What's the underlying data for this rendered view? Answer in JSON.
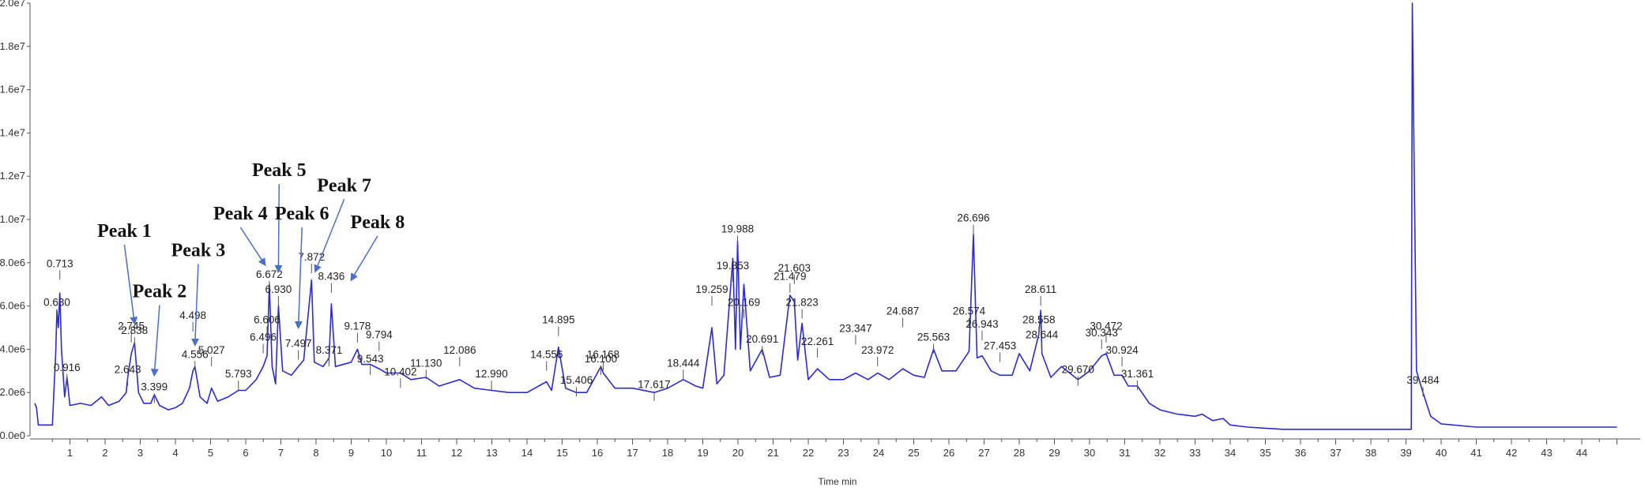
{
  "chart_data": {
    "type": "line",
    "title": "",
    "xlabel": "Time min",
    "ylabel": "",
    "xlim": [
      0,
      45
    ],
    "ylim": [
      0,
      20000000
    ],
    "grid": false,
    "colors": {
      "trace": "#2b2bd0",
      "annotation_arrow": "#4a6fc4",
      "axis": "#555555"
    },
    "y_ticks": [
      {
        "value": 0,
        "label": "0.0e0"
      },
      {
        "value": 2000000,
        "label": "2.0e6"
      },
      {
        "value": 4000000,
        "label": "4.0e6"
      },
      {
        "value": 6000000,
        "label": "6.0e6"
      },
      {
        "value": 8000000,
        "label": "8.0e6"
      },
      {
        "value": 10000000,
        "label": "1.0e7"
      },
      {
        "value": 12000000,
        "label": "1.2e7"
      },
      {
        "value": 14000000,
        "label": "1.4e7"
      },
      {
        "value": 16000000,
        "label": "1.6e7"
      },
      {
        "value": 18000000,
        "label": "1.8e7"
      },
      {
        "value": 20000000,
        "label": "2.0e7"
      }
    ],
    "x_ticks": [
      "1",
      "2",
      "3",
      "4",
      "5",
      "6",
      "7",
      "8",
      "9",
      "10",
      "11",
      "12",
      "13",
      "14",
      "15",
      "16",
      "17",
      "18",
      "19",
      "20",
      "21",
      "22",
      "23",
      "24",
      "25",
      "26",
      "27",
      "28",
      "29",
      "30",
      "31",
      "32",
      "33",
      "34",
      "35",
      "36",
      "37",
      "38",
      "39",
      "40",
      "41",
      "42",
      "43",
      "44"
    ],
    "series": [
      {
        "points": [
          [
            0,
            1500000
          ],
          [
            0.05,
            1300000
          ],
          [
            0.1,
            500000
          ],
          [
            0.5,
            500000
          ],
          [
            0.6,
            4000000
          ],
          [
            0.63,
            5800000
          ],
          [
            0.67,
            5000000
          ],
          [
            0.713,
            6600000
          ],
          [
            0.76,
            4000000
          ],
          [
            0.85,
            1800000
          ],
          [
            0.916,
            2700000
          ],
          [
            1.0,
            1400000
          ],
          [
            1.3,
            1500000
          ],
          [
            1.6,
            1400000
          ],
          [
            1.9,
            1800000
          ],
          [
            2.1,
            1400000
          ],
          [
            2.4,
            1600000
          ],
          [
            2.6,
            2000000
          ],
          [
            2.643,
            2700000
          ],
          [
            2.745,
            3800000
          ],
          [
            2.838,
            4300000
          ],
          [
            2.95,
            2000000
          ],
          [
            3.1,
            1500000
          ],
          [
            3.3,
            1500000
          ],
          [
            3.399,
            1900000
          ],
          [
            3.55,
            1400000
          ],
          [
            3.8,
            1200000
          ],
          [
            4.0,
            1300000
          ],
          [
            4.2,
            1500000
          ],
          [
            4.4,
            2200000
          ],
          [
            4.498,
            3000000
          ],
          [
            4.556,
            3200000
          ],
          [
            4.7,
            1800000
          ],
          [
            4.9,
            1500000
          ],
          [
            5.027,
            2200000
          ],
          [
            5.2,
            1600000
          ],
          [
            5.5,
            1800000
          ],
          [
            5.793,
            2100000
          ],
          [
            6.0,
            2100000
          ],
          [
            6.3,
            2600000
          ],
          [
            6.496,
            3200000
          ],
          [
            6.606,
            3700000
          ],
          [
            6.672,
            7000000
          ],
          [
            6.75,
            3200000
          ],
          [
            6.85,
            2400000
          ],
          [
            6.93,
            6000000
          ],
          [
            7.05,
            3000000
          ],
          [
            7.3,
            2800000
          ],
          [
            7.497,
            3200000
          ],
          [
            7.65,
            3500000
          ],
          [
            7.872,
            7200000
          ],
          [
            7.95,
            3400000
          ],
          [
            8.2,
            3200000
          ],
          [
            8.371,
            3600000
          ],
          [
            8.436,
            6100000
          ],
          [
            8.55,
            3200000
          ],
          [
            9.0,
            3400000
          ],
          [
            9.178,
            4000000
          ],
          [
            9.3,
            3300000
          ],
          [
            9.543,
            3300000
          ],
          [
            9.794,
            3100000
          ],
          [
            10.0,
            2900000
          ],
          [
            10.402,
            2900000
          ],
          [
            10.7,
            2600000
          ],
          [
            11.13,
            2700000
          ],
          [
            11.5,
            2300000
          ],
          [
            12.086,
            2600000
          ],
          [
            12.5,
            2200000
          ],
          [
            12.99,
            2100000
          ],
          [
            13.5,
            2000000
          ],
          [
            14.0,
            2000000
          ],
          [
            14.556,
            2500000
          ],
          [
            14.7,
            2100000
          ],
          [
            14.895,
            4100000
          ],
          [
            15.1,
            2200000
          ],
          [
            15.406,
            2000000
          ],
          [
            15.7,
            2000000
          ],
          [
            16.1,
            3200000
          ],
          [
            16.168,
            2900000
          ],
          [
            16.5,
            2200000
          ],
          [
            17.0,
            2200000
          ],
          [
            17.617,
            2000000
          ],
          [
            18.0,
            2200000
          ],
          [
            18.444,
            2600000
          ],
          [
            18.8,
            2300000
          ],
          [
            19.0,
            2200000
          ],
          [
            19.259,
            5000000
          ],
          [
            19.4,
            2400000
          ],
          [
            19.6,
            2800000
          ],
          [
            19.853,
            8200000
          ],
          [
            19.93,
            4000000
          ],
          [
            19.988,
            9000000
          ],
          [
            20.07,
            4000000
          ],
          [
            20.169,
            7000000
          ],
          [
            20.35,
            3000000
          ],
          [
            20.691,
            4000000
          ],
          [
            20.9,
            2700000
          ],
          [
            21.2,
            2800000
          ],
          [
            21.479,
            6500000
          ],
          [
            21.603,
            6200000
          ],
          [
            21.7,
            3500000
          ],
          [
            21.823,
            5200000
          ],
          [
            22.0,
            2600000
          ],
          [
            22.261,
            3100000
          ],
          [
            22.6,
            2600000
          ],
          [
            23.0,
            2600000
          ],
          [
            23.347,
            2900000
          ],
          [
            23.7,
            2600000
          ],
          [
            23.972,
            2900000
          ],
          [
            24.3,
            2600000
          ],
          [
            24.687,
            3100000
          ],
          [
            25.0,
            2800000
          ],
          [
            25.3,
            2700000
          ],
          [
            25.563,
            4000000
          ],
          [
            25.8,
            3000000
          ],
          [
            26.2,
            3000000
          ],
          [
            26.574,
            3900000
          ],
          [
            26.696,
            9300000
          ],
          [
            26.8,
            3600000
          ],
          [
            26.943,
            3700000
          ],
          [
            27.2,
            3000000
          ],
          [
            27.453,
            2800000
          ],
          [
            27.8,
            2800000
          ],
          [
            28.0,
            3800000
          ],
          [
            28.3,
            3000000
          ],
          [
            28.558,
            4700000
          ],
          [
            28.611,
            5800000
          ],
          [
            28.644,
            3800000
          ],
          [
            28.9,
            2700000
          ],
          [
            29.2,
            3200000
          ],
          [
            29.67,
            2600000
          ],
          [
            30.0,
            3000000
          ],
          [
            30.343,
            3700000
          ],
          [
            30.472,
            3800000
          ],
          [
            30.7,
            2800000
          ],
          [
            30.924,
            2800000
          ],
          [
            31.1,
            2300000
          ],
          [
            31.361,
            2300000
          ],
          [
            31.7,
            1500000
          ],
          [
            32.0,
            1200000
          ],
          [
            32.5,
            1000000
          ],
          [
            33.0,
            900000
          ],
          [
            33.2,
            1000000
          ],
          [
            33.5,
            700000
          ],
          [
            33.8,
            800000
          ],
          [
            34.0,
            500000
          ],
          [
            34.5,
            400000
          ],
          [
            35.0,
            350000
          ],
          [
            35.5,
            300000
          ],
          [
            36.0,
            300000
          ],
          [
            37.0,
            300000
          ],
          [
            38.0,
            300000
          ],
          [
            39.0,
            300000
          ],
          [
            39.15,
            300000
          ],
          [
            39.18,
            20000000
          ],
          [
            39.3,
            3000000
          ],
          [
            39.484,
            2000000
          ],
          [
            39.7,
            900000
          ],
          [
            40.0,
            550000
          ],
          [
            41.0,
            400000
          ],
          [
            42.0,
            400000
          ],
          [
            43.0,
            400000
          ],
          [
            44.0,
            400000
          ],
          [
            45,
            400000
          ]
        ]
      }
    ],
    "peak_labels": [
      {
        "t": 0.63,
        "y": 6000000,
        "label": "0.630"
      },
      {
        "t": 0.713,
        "y": 7800000,
        "label": "0.713"
      },
      {
        "t": 0.916,
        "y": 3000000,
        "label": "0.916"
      },
      {
        "t": 2.643,
        "y": 2900000,
        "label": "2.643"
      },
      {
        "t": 2.745,
        "y": 4900000,
        "label": "2.745"
      },
      {
        "t": 2.838,
        "y": 4700000,
        "label": "2.838"
      },
      {
        "t": 3.399,
        "y": 2100000,
        "label": "3.399"
      },
      {
        "t": 4.498,
        "y": 5400000,
        "label": "4.498"
      },
      {
        "t": 4.556,
        "y": 3600000,
        "label": "4.556"
      },
      {
        "t": 5.027,
        "y": 3800000,
        "label": "5.027"
      },
      {
        "t": 5.793,
        "y": 2700000,
        "label": "5.793"
      },
      {
        "t": 6.496,
        "y": 4400000,
        "label": "6.496"
      },
      {
        "t": 6.606,
        "y": 5200000,
        "label": "6.606"
      },
      {
        "t": 6.672,
        "y": 7300000,
        "label": "6.672"
      },
      {
        "t": 6.93,
        "y": 6600000,
        "label": "6.930"
      },
      {
        "t": 7.497,
        "y": 4100000,
        "label": "7.497"
      },
      {
        "t": 7.872,
        "y": 8100000,
        "label": "7.872"
      },
      {
        "t": 8.371,
        "y": 3800000,
        "label": "8.371"
      },
      {
        "t": 8.436,
        "y": 7200000,
        "label": "8.436"
      },
      {
        "t": 9.178,
        "y": 4900000,
        "label": "9.178"
      },
      {
        "t": 9.543,
        "y": 3400000,
        "label": "9.543"
      },
      {
        "t": 9.794,
        "y": 4500000,
        "label": "9.794"
      },
      {
        "t": 10.402,
        "y": 2800000,
        "label": "10.402"
      },
      {
        "t": 11.13,
        "y": 3200000,
        "label": "11.130"
      },
      {
        "t": 12.086,
        "y": 3800000,
        "label": "12.086"
      },
      {
        "t": 12.99,
        "y": 2700000,
        "label": "12.990"
      },
      {
        "t": 14.556,
        "y": 3600000,
        "label": "14.556"
      },
      {
        "t": 14.895,
        "y": 5200000,
        "label": "14.895"
      },
      {
        "t": 15.406,
        "y": 2400000,
        "label": "15.406"
      },
      {
        "t": 16.1,
        "y": 3400000,
        "label": "16.100"
      },
      {
        "t": 16.168,
        "y": 3600000,
        "label": "16.168"
      },
      {
        "t": 17.617,
        "y": 2200000,
        "label": "17.617"
      },
      {
        "t": 18.444,
        "y": 3200000,
        "label": "18.444"
      },
      {
        "t": 19.259,
        "y": 6600000,
        "label": "19.259"
      },
      {
        "t": 19.853,
        "y": 7700000,
        "label": "19.853"
      },
      {
        "t": 19.988,
        "y": 9400000,
        "label": "19.988"
      },
      {
        "t": 20.169,
        "y": 6000000,
        "label": "20.169"
      },
      {
        "t": 20.691,
        "y": 4300000,
        "label": "20.691"
      },
      {
        "t": 21.479,
        "y": 7200000,
        "label": "21.479"
      },
      {
        "t": 21.603,
        "y": 7600000,
        "label": "21.603"
      },
      {
        "t": 21.823,
        "y": 6000000,
        "label": "21.823"
      },
      {
        "t": 22.261,
        "y": 4200000,
        "label": "22.261"
      },
      {
        "t": 23.347,
        "y": 4800000,
        "label": "23.347"
      },
      {
        "t": 23.972,
        "y": 3800000,
        "label": "23.972"
      },
      {
        "t": 24.687,
        "y": 5600000,
        "label": "24.687"
      },
      {
        "t": 25.563,
        "y": 4400000,
        "label": "25.563"
      },
      {
        "t": 26.574,
        "y": 5600000,
        "label": "26.574"
      },
      {
        "t": 26.696,
        "y": 9900000,
        "label": "26.696"
      },
      {
        "t": 26.943,
        "y": 5000000,
        "label": "26.943"
      },
      {
        "t": 27.453,
        "y": 4000000,
        "label": "27.453"
      },
      {
        "t": 28.558,
        "y": 5200000,
        "label": "28.558"
      },
      {
        "t": 28.611,
        "y": 6600000,
        "label": "28.611"
      },
      {
        "t": 28.644,
        "y": 4500000,
        "label": "28.644"
      },
      {
        "t": 29.67,
        "y": 2900000,
        "label": "29.670"
      },
      {
        "t": 30.343,
        "y": 4600000,
        "label": "30.343"
      },
      {
        "t": 30.472,
        "y": 4900000,
        "label": "30.472"
      },
      {
        "t": 30.924,
        "y": 3800000,
        "label": "30.924"
      },
      {
        "t": 31.361,
        "y": 2700000,
        "label": "31.361"
      },
      {
        "t": 39.484,
        "y": 2400000,
        "label": "39.484"
      }
    ],
    "annotations": [
      {
        "text": "Peak 1",
        "label_t": 2.55,
        "label_y": 9200000,
        "arrow_t": 2.838,
        "arrow_y": 5200000
      },
      {
        "text": "Peak 2",
        "label_t": 3.55,
        "label_y": 6400000,
        "arrow_t": 3.399,
        "arrow_y": 2800000
      },
      {
        "text": "Peak 3",
        "label_t": 4.65,
        "label_y": 8300000,
        "arrow_t": 4.556,
        "arrow_y": 4200000
      },
      {
        "text": "Peak 4",
        "label_t": 5.85,
        "label_y": 10000000,
        "arrow_t": 6.55,
        "arrow_y": 7900000
      },
      {
        "text": "Peak 5",
        "label_t": 6.95,
        "label_y": 12000000,
        "arrow_t": 6.93,
        "arrow_y": 7600000
      },
      {
        "text": "Peak 6",
        "label_t": 7.6,
        "label_y": 10000000,
        "arrow_t": 7.497,
        "arrow_y": 5000000
      },
      {
        "text": "Peak 7",
        "label_t": 8.8,
        "label_y": 11300000,
        "arrow_t": 7.98,
        "arrow_y": 7600000
      },
      {
        "text": "Peak 8",
        "label_t": 9.75,
        "label_y": 9600000,
        "arrow_t": 9.0,
        "arrow_y": 7200000
      }
    ]
  }
}
